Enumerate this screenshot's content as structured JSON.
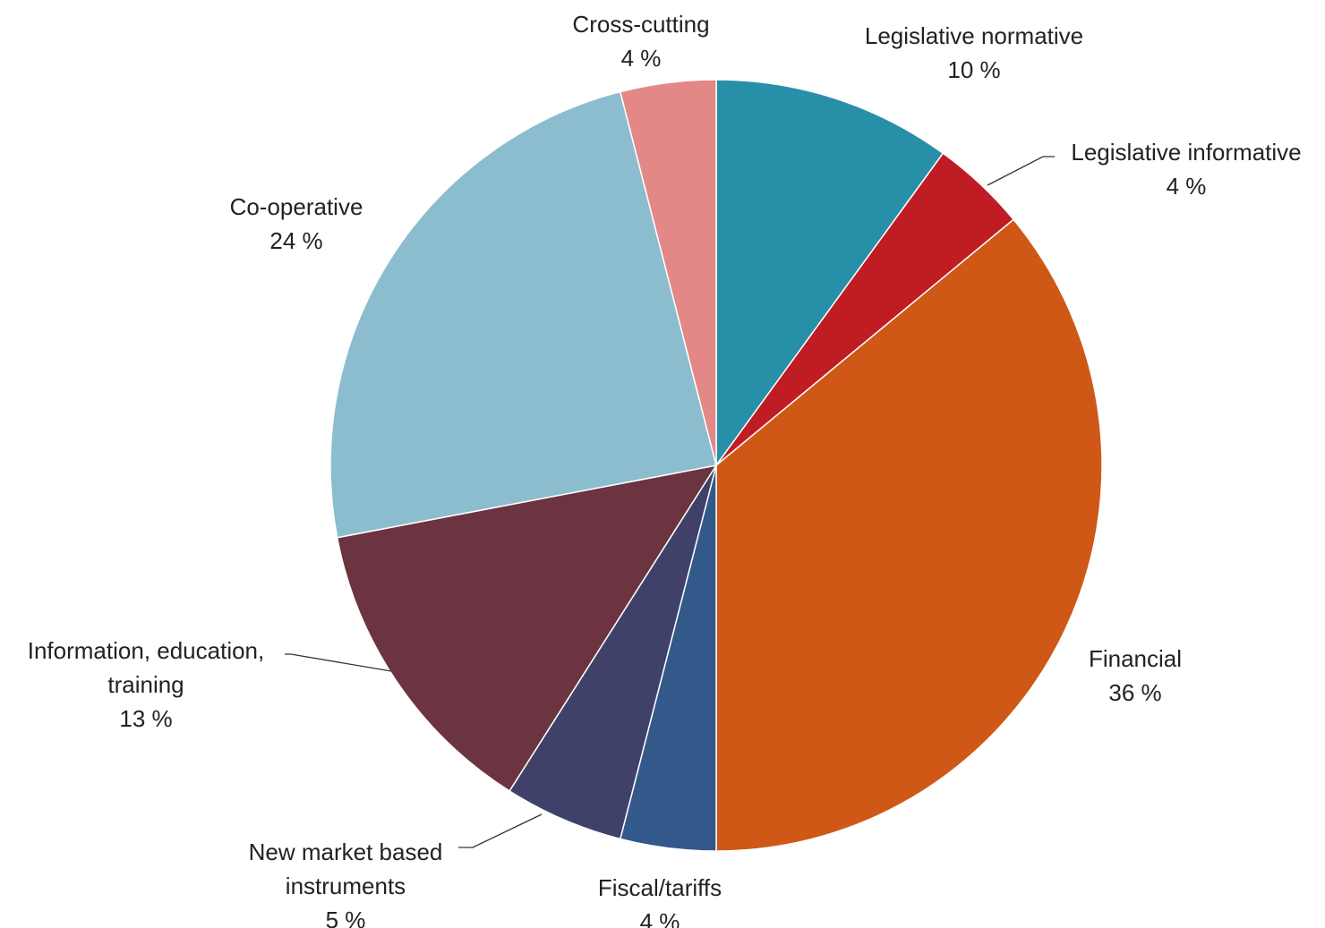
{
  "chart_data": {
    "type": "pie",
    "title": "",
    "slices": [
      {
        "label": "Legislative normative",
        "value": 10,
        "value_text": "10 %",
        "color": "#288FA9"
      },
      {
        "label": "Legislative informative",
        "value": 4,
        "value_text": "4 %",
        "color": "#C01C24"
      },
      {
        "label": "Financial",
        "value": 36,
        "value_text": "36 %",
        "color": "#CF5817"
      },
      {
        "label": "Fiscal/tariffs",
        "value": 4,
        "value_text": "4 %",
        "color": "#33598B"
      },
      {
        "label": "New market based instruments",
        "value": 5,
        "value_text": "5 %",
        "color": "#3F4169"
      },
      {
        "label": "Information, education, training",
        "value": 13,
        "value_text": "13 %",
        "color": "#6C3340"
      },
      {
        "label": "Co-operative",
        "value": 24,
        "value_text": "24 %",
        "color": "#8CBDCF"
      },
      {
        "label": "Cross-cutting",
        "value": 4,
        "value_text": "4 %",
        "color": "#E38887"
      }
    ],
    "start_angle": "12 o'clock",
    "direction": "clockwise",
    "legend": "none",
    "data_labels": "outside, category name and percentage"
  }
}
